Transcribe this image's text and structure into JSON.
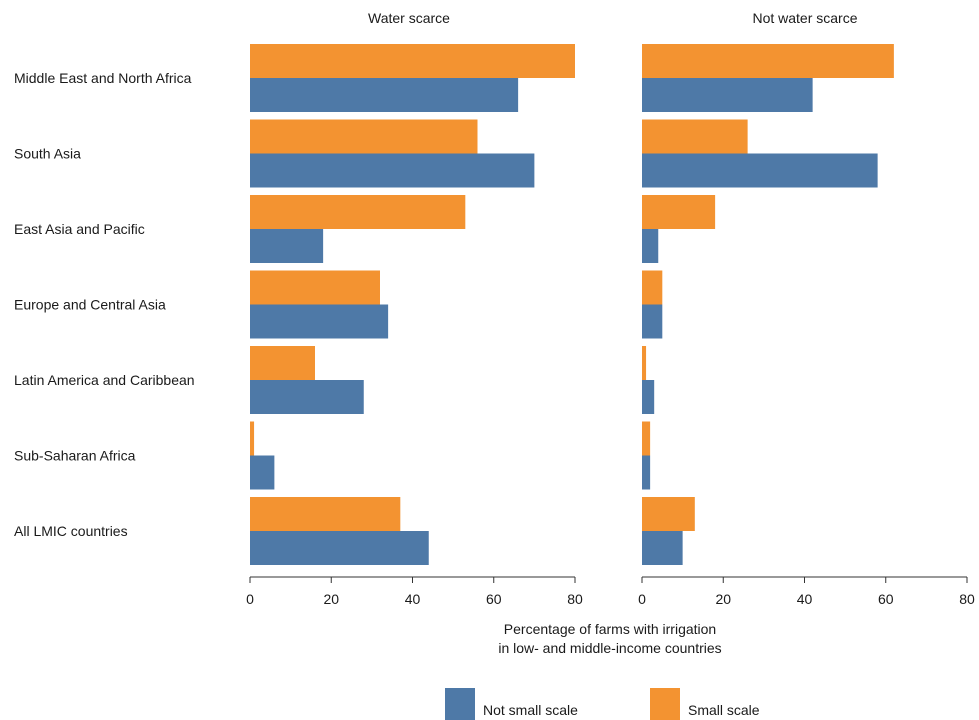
{
  "chart_data": {
    "type": "bar",
    "orientation": "horizontal",
    "categories": [
      "Middle East and North Africa",
      "South Asia",
      "East Asia and Pacific",
      "Europe and Central Asia",
      "Latin America and Caribbean",
      "Sub-Saharan Africa",
      "All LMIC countries"
    ],
    "panels": [
      {
        "title": "Water scarce",
        "series": [
          {
            "name": "Small scale",
            "values": [
              85,
              56,
              53,
              32,
              16,
              1,
              37
            ]
          },
          {
            "name": "Not small scale",
            "values": [
              66,
              70,
              18,
              34,
              28,
              6,
              44
            ]
          }
        ]
      },
      {
        "title": "Not water scarce",
        "series": [
          {
            "name": "Small scale",
            "values": [
              62,
              26,
              18,
              5,
              1,
              2,
              13
            ]
          },
          {
            "name": "Not small scale",
            "values": [
              42,
              58,
              4,
              5,
              3,
              2,
              10
            ]
          }
        ]
      }
    ],
    "xlim": [
      0,
      80
    ],
    "xticks": [
      0,
      20,
      40,
      60,
      80
    ],
    "xlabel_line1": "Percentage of farms with irrigation",
    "xlabel_line2": "in low- and middle-income countries",
    "legend": {
      "position": "bottom",
      "entries": [
        "Not small scale",
        "Small scale"
      ]
    },
    "colors": {
      "Small scale": "#f39331",
      "Not small scale": "#4e79a7"
    },
    "grid": false
  }
}
